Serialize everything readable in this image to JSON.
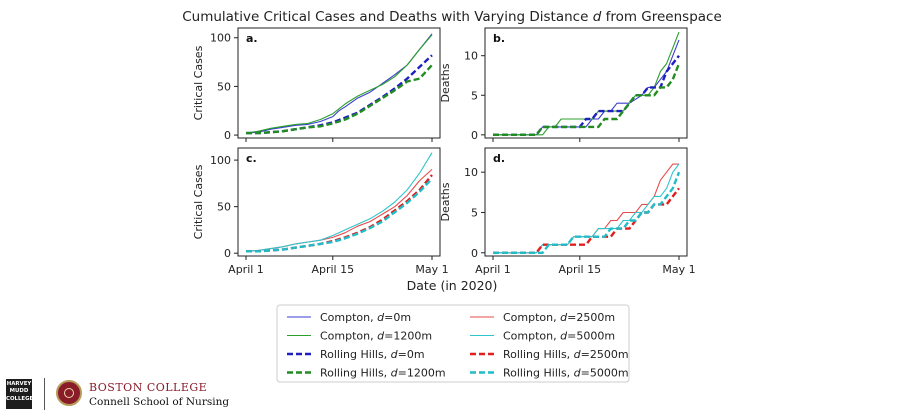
{
  "figure": {
    "title_prefix": "Cumulative Critical Cases and Deaths with Varying Distance ",
    "title_var": "d",
    "title_suffix": " from Greenspace",
    "shared_xlabel": "Date (in 2020)"
  },
  "legend": {
    "items": [
      {
        "key": "c0",
        "prefix": "Compton, ",
        "value": "=0m",
        "color": "#3a3fcf",
        "dashed": false
      },
      {
        "key": "c1200",
        "prefix": "Compton, ",
        "value": "=1200m",
        "color": "#2ca02c",
        "dashed": false
      },
      {
        "key": "r0",
        "prefix": "Rolling Hills, ",
        "value": "=0m",
        "color": "#1f1fbf",
        "dashed": true
      },
      {
        "key": "r1200",
        "prefix": "Rolling Hills, ",
        "value": "=1200m",
        "color": "#228b22",
        "dashed": true
      },
      {
        "key": "c2500",
        "prefix": "Compton, ",
        "value": "=2500m",
        "color": "#e74c4c",
        "dashed": false
      },
      {
        "key": "c5000",
        "prefix": "Compton, ",
        "value": "=5000m",
        "color": "#2ec4cc",
        "dashed": false
      },
      {
        "key": "r2500",
        "prefix": "Rolling Hills, ",
        "value": "=2500m",
        "color": "#e01f1f",
        "dashed": true
      },
      {
        "key": "r5000",
        "prefix": "Rolling Hills, ",
        "value": "=5000m",
        "color": "#20bcc8",
        "dashed": true
      }
    ],
    "var": "d"
  },
  "logos": {
    "hmc_lines": [
      "HARVEY",
      "MUDD",
      "COLLEGE"
    ],
    "bc_name": "BOSTON COLLEGE",
    "bc_school": "Connell School of Nursing"
  },
  "chart_data": [
    {
      "panel": "a.",
      "type": "line",
      "ylabel": "Critical Cases",
      "xlim": [
        0,
        30
      ],
      "ylim": [
        -3,
        110
      ],
      "yticks": [
        0,
        50,
        100
      ],
      "xticks": [
        {
          "v": 0,
          "label": "April 1"
        },
        {
          "v": 14,
          "label": "April 15"
        },
        {
          "v": 30,
          "label": "May 1"
        }
      ],
      "xtick_labels_shown": false,
      "series": [
        {
          "key": "c0",
          "x": [
            0,
            2,
            4,
            6,
            8,
            10,
            12,
            14,
            15,
            16,
            18,
            20,
            22,
            24,
            26,
            28,
            30
          ],
          "y": [
            2,
            3,
            6,
            8,
            10,
            11,
            14,
            19,
            25,
            29,
            38,
            44,
            53,
            62,
            72,
            88,
            104
          ]
        },
        {
          "key": "c1200",
          "x": [
            0,
            2,
            4,
            6,
            8,
            10,
            12,
            14,
            15,
            16,
            18,
            20,
            22,
            24,
            26,
            28,
            30
          ],
          "y": [
            2,
            4,
            7,
            9,
            11,
            12,
            16,
            22,
            27,
            32,
            40,
            46,
            52,
            60,
            72,
            88,
            103
          ]
        },
        {
          "key": "r0",
          "x": [
            0,
            2,
            4,
            6,
            8,
            10,
            12,
            14,
            16,
            18,
            20,
            22,
            24,
            26,
            28,
            30
          ],
          "y": [
            2,
            2,
            3,
            4,
            6,
            8,
            10,
            13,
            18,
            23,
            31,
            39,
            48,
            58,
            70,
            82
          ]
        },
        {
          "key": "r1200",
          "x": [
            0,
            2,
            4,
            6,
            8,
            10,
            12,
            14,
            16,
            18,
            20,
            22,
            24,
            26,
            28,
            30
          ],
          "y": [
            2,
            2,
            3,
            4,
            6,
            8,
            9,
            12,
            16,
            22,
            30,
            38,
            46,
            55,
            58,
            72
          ]
        }
      ]
    },
    {
      "panel": "b.",
      "type": "line",
      "ylabel": "Deaths",
      "xlim": [
        0,
        30
      ],
      "ylim": [
        -0.4,
        13.5
      ],
      "yticks": [
        0,
        5,
        10
      ],
      "xticks": [
        {
          "v": 0,
          "label": "April 1"
        },
        {
          "v": 14,
          "label": "April 15"
        },
        {
          "v": 30,
          "label": "May 1"
        }
      ],
      "xtick_labels_shown": false,
      "series": [
        {
          "key": "c0",
          "x": [
            0,
            7,
            8,
            9,
            11,
            12,
            13,
            15,
            16,
            17,
            18,
            19,
            20,
            21,
            22,
            24,
            25,
            26,
            27,
            28,
            29,
            30
          ],
          "y": [
            0,
            0,
            1,
            1,
            1,
            1,
            1,
            1,
            2,
            2,
            3,
            3,
            4,
            4,
            4,
            5,
            6,
            6,
            7,
            8,
            10,
            12
          ]
        },
        {
          "key": "c1200",
          "x": [
            0,
            8,
            9,
            10,
            11,
            12,
            13,
            14,
            15,
            16,
            17,
            18,
            19,
            20,
            21,
            22,
            23,
            24,
            25,
            26,
            27,
            28,
            29,
            30
          ],
          "y": [
            0,
            0,
            1,
            1,
            2,
            2,
            2,
            2,
            2,
            2,
            3,
            3,
            3,
            3,
            3,
            4,
            5,
            5,
            5,
            6,
            8,
            9,
            11,
            13
          ]
        },
        {
          "key": "r0",
          "x": [
            0,
            6,
            7,
            8,
            9,
            10,
            11,
            12,
            13,
            14,
            15,
            16,
            17,
            18,
            19,
            20,
            21,
            22,
            23,
            24,
            25,
            26,
            27,
            28,
            29,
            30
          ],
          "y": [
            0,
            0,
            0,
            1,
            1,
            1,
            1,
            1,
            1,
            1,
            2,
            2,
            3,
            3,
            3,
            3,
            3,
            4,
            5,
            5,
            6,
            6,
            6,
            8,
            9,
            10
          ]
        },
        {
          "key": "r1200",
          "x": [
            0,
            6,
            7,
            8,
            9,
            10,
            11,
            12,
            13,
            14,
            15,
            16,
            17,
            18,
            19,
            20,
            21,
            22,
            23,
            24,
            25,
            26,
            27,
            28,
            29,
            30
          ],
          "y": [
            0,
            0,
            0,
            1,
            1,
            1,
            1,
            1,
            1,
            1,
            1,
            1,
            1,
            2,
            2,
            2,
            3,
            4,
            5,
            5,
            5,
            5,
            6,
            6,
            7,
            9
          ]
        }
      ]
    },
    {
      "panel": "c.",
      "type": "line",
      "ylabel": "Critical Cases",
      "xlim": [
        0,
        30
      ],
      "ylim": [
        -3,
        113
      ],
      "yticks": [
        0,
        50,
        100
      ],
      "xticks": [
        {
          "v": 0,
          "label": "April 1"
        },
        {
          "v": 14,
          "label": "April 15"
        },
        {
          "v": 30,
          "label": "May 1"
        }
      ],
      "xtick_labels_shown": true,
      "series": [
        {
          "key": "c2500",
          "x": [
            0,
            2,
            4,
            6,
            8,
            10,
            12,
            14,
            16,
            18,
            20,
            22,
            24,
            26,
            28,
            30
          ],
          "y": [
            2,
            3,
            5,
            7,
            10,
            12,
            14,
            17,
            22,
            29,
            34,
            42,
            50,
            62,
            78,
            90
          ]
        },
        {
          "key": "c5000",
          "x": [
            0,
            2,
            4,
            6,
            8,
            10,
            12,
            14,
            16,
            18,
            20,
            22,
            24,
            26,
            28,
            30
          ],
          "y": [
            2,
            3,
            5,
            7,
            10,
            12,
            14,
            19,
            25,
            31,
            37,
            45,
            55,
            68,
            86,
            108
          ]
        },
        {
          "key": "r2500",
          "x": [
            0,
            2,
            4,
            6,
            8,
            10,
            12,
            14,
            16,
            18,
            20,
            22,
            24,
            26,
            28,
            30
          ],
          "y": [
            2,
            2,
            3,
            4,
            6,
            8,
            10,
            13,
            17,
            22,
            28,
            36,
            46,
            56,
            68,
            84
          ]
        },
        {
          "key": "r5000",
          "x": [
            0,
            2,
            4,
            6,
            8,
            10,
            12,
            14,
            16,
            18,
            20,
            22,
            24,
            26,
            28,
            30
          ],
          "y": [
            2,
            2,
            3,
            4,
            6,
            8,
            10,
            12,
            16,
            21,
            27,
            34,
            44,
            54,
            66,
            80
          ]
        }
      ]
    },
    {
      "panel": "d.",
      "type": "line",
      "ylabel": "Deaths",
      "xlim": [
        0,
        30
      ],
      "ylim": [
        -0.4,
        13
      ],
      "yticks": [
        0,
        5,
        10
      ],
      "xticks": [
        {
          "v": 0,
          "label": "April 1"
        },
        {
          "v": 14,
          "label": "April 15"
        },
        {
          "v": 30,
          "label": "May 1"
        }
      ],
      "xtick_labels_shown": true,
      "series": [
        {
          "key": "c2500",
          "x": [
            0,
            6,
            7,
            8,
            9,
            10,
            11,
            12,
            13,
            14,
            15,
            16,
            17,
            18,
            19,
            20,
            21,
            22,
            23,
            24,
            25,
            26,
            27,
            28,
            29,
            30
          ],
          "y": [
            0,
            0,
            0,
            1,
            1,
            1,
            1,
            1,
            2,
            2,
            2,
            2,
            3,
            3,
            4,
            4,
            5,
            5,
            5,
            6,
            6,
            7,
            9,
            10,
            11,
            11
          ]
        },
        {
          "key": "c5000",
          "x": [
            0,
            7,
            8,
            9,
            10,
            11,
            12,
            13,
            14,
            15,
            16,
            17,
            18,
            19,
            20,
            21,
            22,
            23,
            24,
            25,
            26,
            27,
            28,
            29,
            30
          ],
          "y": [
            0,
            0,
            1,
            1,
            1,
            1,
            1,
            2,
            2,
            2,
            2,
            3,
            3,
            3,
            3,
            4,
            4,
            5,
            5,
            6,
            7,
            7,
            8,
            10,
            11
          ]
        },
        {
          "key": "r2500",
          "x": [
            0,
            7,
            8,
            9,
            10,
            11,
            12,
            13,
            14,
            15,
            16,
            17,
            18,
            19,
            20,
            21,
            22,
            23,
            24,
            25,
            26,
            27,
            28,
            29,
            30
          ],
          "y": [
            0,
            0,
            1,
            1,
            1,
            1,
            1,
            1,
            1,
            1,
            2,
            2,
            2,
            2,
            3,
            3,
            3,
            4,
            5,
            5,
            6,
            6,
            6,
            7,
            8
          ]
        },
        {
          "key": "r5000",
          "x": [
            0,
            7,
            8,
            9,
            10,
            11,
            12,
            13,
            14,
            15,
            16,
            17,
            18,
            19,
            20,
            21,
            22,
            23,
            24,
            25,
            26,
            27,
            28,
            29,
            30
          ],
          "y": [
            0,
            0,
            0,
            1,
            1,
            1,
            1,
            2,
            2,
            2,
            2,
            2,
            2,
            3,
            3,
            3,
            4,
            4,
            5,
            5,
            6,
            6,
            7,
            8,
            10
          ]
        }
      ]
    }
  ]
}
